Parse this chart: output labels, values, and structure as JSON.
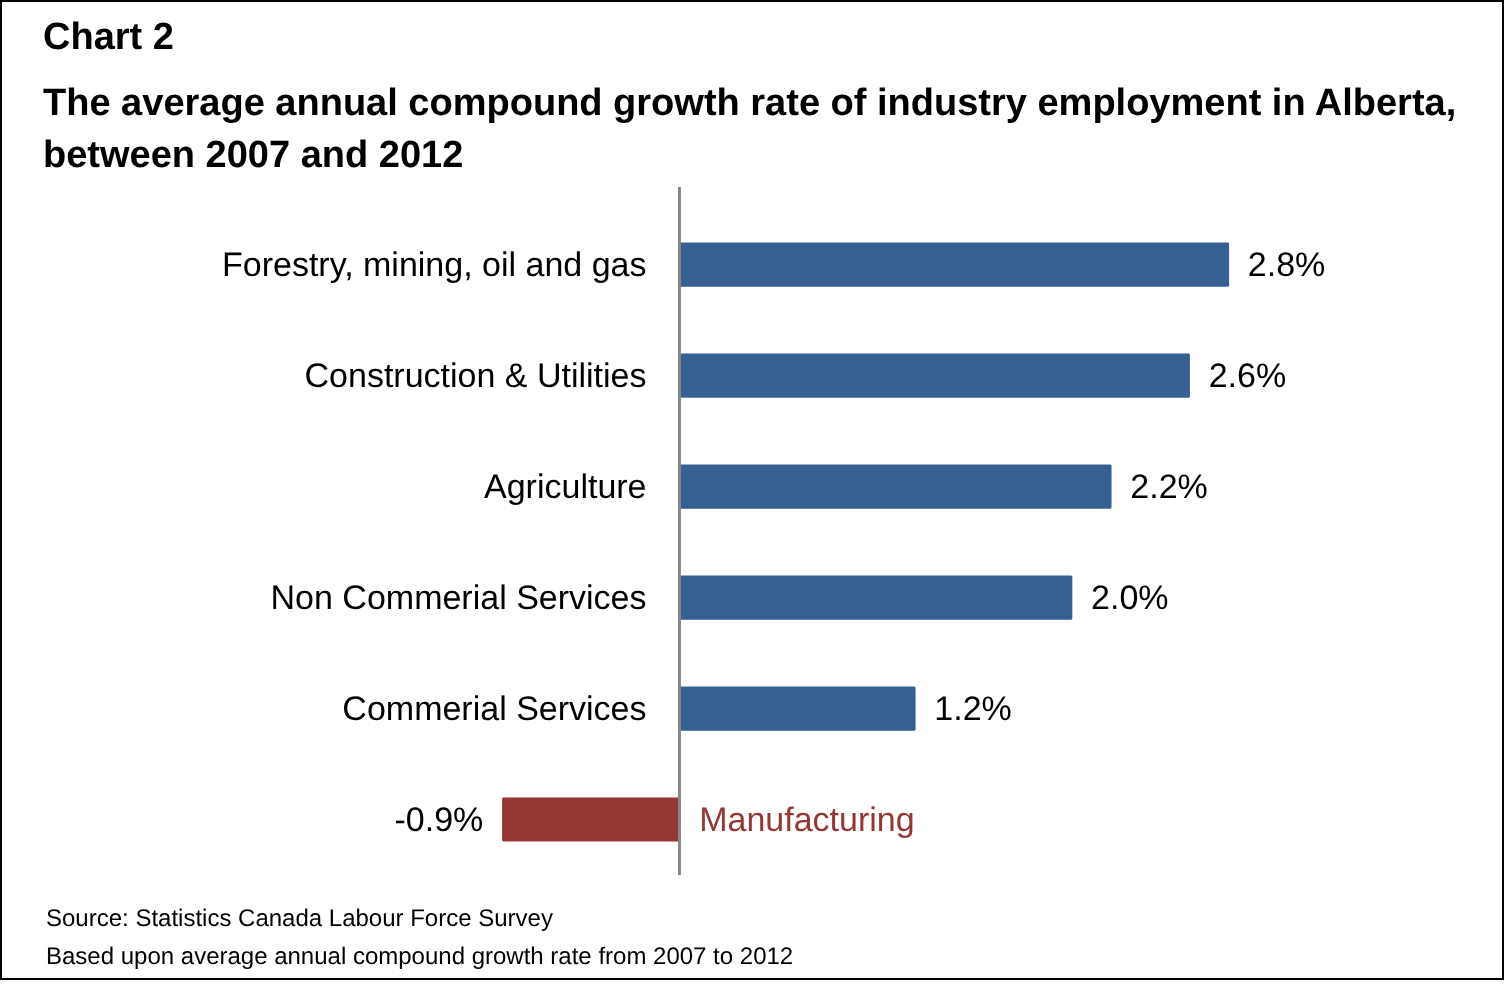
{
  "chart_data": {
    "type": "bar",
    "orientation": "horizontal",
    "title": "Chart 2",
    "subtitle": "The average annual compound growth rate of industry employment in Alberta, between 2007 and 2012",
    "categories": [
      "Forestry, mining, oil and gas",
      "Construction & Utilities",
      "Agriculture",
      "Non Commerial Services",
      "Commerial Services",
      "Manufacturing"
    ],
    "values": [
      2.8,
      2.6,
      2.2,
      2.0,
      1.2,
      -0.9
    ],
    "colors": [
      "#366092",
      "#366092",
      "#366092",
      "#366092",
      "#366092",
      "#953735"
    ],
    "value_labels": [
      "2.8%",
      "2.6%",
      "2.2%",
      "2.0%",
      "1.2%",
      "-0.9%"
    ],
    "annotations": [
      "Source: Statistics Canada Labour Force Survey",
      "Based upon average annual compound growth rate from 2007 to 2012"
    ]
  }
}
